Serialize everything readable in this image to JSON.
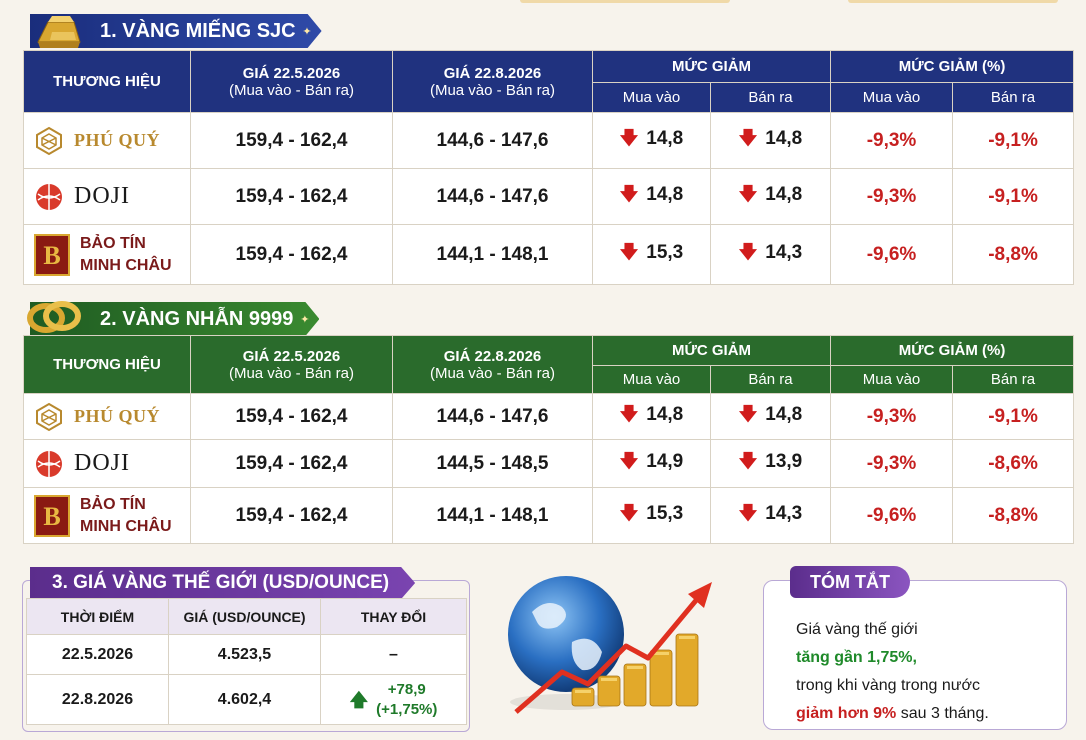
{
  "sections": {
    "sjc_title": "1. VÀNG MIẾNG SJC",
    "nhan_title": "2. VÀNG NHẪN 9999",
    "world_title": "3. GIÁ VÀNG THẾ GIỚI (USD/OUNCE)"
  },
  "headers": {
    "brand": "THƯƠNG HIỆU",
    "price1": "GIÁ 22.5.2026",
    "price1_sub": "(Mua vào - Bán ra)",
    "price2": "GIÁ 22.8.2026",
    "price2_sub": "(Mua vào - Bán ra)",
    "drop": "MỨC GIẢM",
    "drop_pct": "MỨC GIẢM (%)",
    "buy": "Mua vào",
    "sell": "Bán ra"
  },
  "brands": {
    "phu_quy": "PHÚ QUÝ",
    "doji": "DOJI",
    "btmc_line1": "BẢO TÍN",
    "btmc_line2": "MINH CHÂU"
  },
  "sjc_rows": [
    {
      "p1": "159,4 - 162,4",
      "p2": "144,6 - 147,6",
      "d_buy": "14,8",
      "d_sell": "14,8",
      "pct_buy": "-9,3%",
      "pct_sell": "-9,1%"
    },
    {
      "p1": "159,4 - 162,4",
      "p2": "144,6 - 147,6",
      "d_buy": "14,8",
      "d_sell": "14,8",
      "pct_buy": "-9,3%",
      "pct_sell": "-9,1%"
    },
    {
      "p1": "159,4 - 162,4",
      "p2": "144,1 - 148,1",
      "d_buy": "15,3",
      "d_sell": "14,3",
      "pct_buy": "-9,6%",
      "pct_sell": "-8,8%"
    }
  ],
  "nhan_rows": [
    {
      "p1": "159,4 - 162,4",
      "p2": "144,6 - 147,6",
      "d_buy": "14,8",
      "d_sell": "14,8",
      "pct_buy": "-9,3%",
      "pct_sell": "-9,1%"
    },
    {
      "p1": "159,4 - 162,4",
      "p2": "144,5 - 148,5",
      "d_buy": "14,9",
      "d_sell": "13,9",
      "pct_buy": "-9,3%",
      "pct_sell": "-8,6%"
    },
    {
      "p1": "159,4 - 162,4",
      "p2": "144,1 - 148,1",
      "d_buy": "15,3",
      "d_sell": "14,3",
      "pct_buy": "-9,6%",
      "pct_sell": "-8,8%"
    }
  ],
  "world": {
    "col_time": "THỜI ĐIỂM",
    "col_price": "GIÁ (USD/OUNCE)",
    "col_change": "THAY ĐỔI",
    "rows": [
      {
        "date": "22.5.2026",
        "price": "4.523,5",
        "change": "–",
        "change2": ""
      },
      {
        "date": "22.8.2026",
        "price": "4.602,4",
        "change": "+78,9",
        "change2": "(+1,75%)"
      }
    ]
  },
  "summary": {
    "tag": "TÓM TẮT",
    "line1": "Giá vàng thế giới",
    "line2": "tăng gần 1,75%,",
    "line3": "trong khi vàng trong nước",
    "line4_red": "giảm hơn 9%",
    "line4_rest": " sau 3 tháng."
  },
  "icons": {
    "down": "arrow-down-icon",
    "up": "arrow-up-icon"
  },
  "colors": {
    "sjc_header": "#20327f",
    "nhan_header": "#2a6b2c",
    "world_accent": "#5b2d8c",
    "negative": "#c62020",
    "positive": "#1f7a2a"
  }
}
